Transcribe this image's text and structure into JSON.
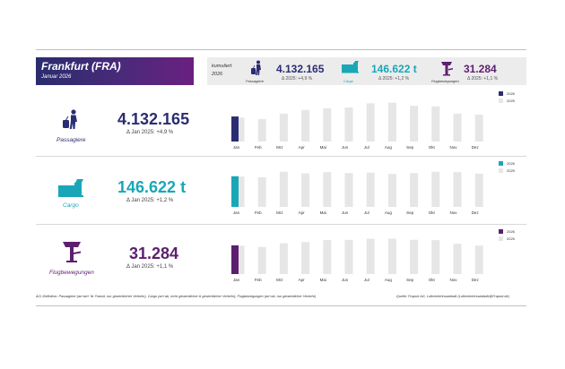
{
  "header": {
    "title": "Frankfurt (FRA)",
    "subtitle": "Januar 2026"
  },
  "cumulative": {
    "label_line1": "kumuliert",
    "label_line2": "2026",
    "items": [
      {
        "caption": "Passagiere",
        "value": "4.132.165",
        "delta": "Δ 2025: +4,9 %",
        "color": "#2b2d72"
      },
      {
        "caption": "Cargo",
        "value": "146.622 t",
        "delta": "Δ 2025: +1,2 %",
        "color": "#19a7b8"
      },
      {
        "caption": "Flugbewegungen",
        "value": "31.284",
        "delta": "Δ 2025: +1,1 %",
        "color": "#5c1f6e"
      }
    ]
  },
  "rows": [
    {
      "label": "Passagiere",
      "value": "4.132.165",
      "delta": "Δ Jan 2025: +4,9 %",
      "color": "#2b2d72"
    },
    {
      "label": "Cargo",
      "value": "146.622 t",
      "delta": "Δ Jan 2025: +1,2 %",
      "color": "#19a7b8"
    },
    {
      "label": "Flugbewegungen",
      "value": "31.284",
      "delta": "Δ Jan 2025: +1,1 %",
      "color": "#5c1f6e"
    }
  ],
  "legend": {
    "current": "2026",
    "previous": "2025"
  },
  "chart_data": [
    {
      "type": "bar",
      "categories": [
        "Jan",
        "Feb",
        "Mrz",
        "Apr",
        "Mai",
        "Jun",
        "Jul",
        "Aug",
        "Sep",
        "Okt",
        "Nov",
        "Dez"
      ],
      "series": [
        {
          "name": "2026",
          "values": [
            4132165,
            null,
            null,
            null,
            null,
            null,
            null,
            null,
            null,
            null,
            null,
            null
          ],
          "color": "#2b2d72"
        },
        {
          "name": "2025",
          "values": [
            3940000,
            3700000,
            4600000,
            5200000,
            5500000,
            5600000,
            6300000,
            6400000,
            5900000,
            5800000,
            4600000,
            4450000
          ],
          "color": "#e6e6e6"
        }
      ],
      "ylim": [
        0,
        6800000
      ]
    },
    {
      "type": "bar",
      "categories": [
        "Jan",
        "Feb",
        "Mrz",
        "Apr",
        "Mai",
        "Jun",
        "Jul",
        "Aug",
        "Sep",
        "Okt",
        "Nov",
        "Dez"
      ],
      "series": [
        {
          "name": "2026",
          "values": [
            146622,
            null,
            null,
            null,
            null,
            null,
            null,
            null,
            null,
            null,
            null,
            null
          ],
          "color": "#19a7b8"
        },
        {
          "name": "2025",
          "values": [
            144900,
            142000,
            168000,
            160000,
            166000,
            162000,
            164000,
            158000,
            162000,
            168000,
            166000,
            159000
          ],
          "color": "#e6e6e6"
        }
      ],
      "ylim": [
        0,
        180000
      ]
    },
    {
      "type": "bar",
      "categories": [
        "Jan",
        "Feb",
        "Mrz",
        "Apr",
        "Mai",
        "Jun",
        "Jul",
        "Aug",
        "Sep",
        "Okt",
        "Nov",
        "Dez"
      ],
      "series": [
        {
          "name": "2026",
          "values": [
            31284,
            null,
            null,
            null,
            null,
            null,
            null,
            null,
            null,
            null,
            null,
            null
          ],
          "color": "#5c1f6e"
        },
        {
          "name": "2025",
          "values": [
            30940,
            29600,
            33500,
            35000,
            37000,
            37200,
            38500,
            38600,
            37400,
            37000,
            33000,
            31000
          ],
          "color": "#e6e6e6"
        }
      ],
      "ylim": [
        0,
        41000
      ]
    }
  ],
  "footnote": "ACI-Definition: Passagiere (an+ab+ fix Transit, nur gewerblicher Verkehr), Cargo (an+ab, nicht gewerblicher & gewerblicher Verkehr), Flugbewegungen (an+ab, nur gewerblicher Verkehr)",
  "source": "Quelle: Fraport AG, Luftverkehrsstatistik (Luftverkehrsstatistik@Fraport.de)",
  "icons": [
    "passenger-icon",
    "cargo-icon",
    "tower-icon"
  ]
}
